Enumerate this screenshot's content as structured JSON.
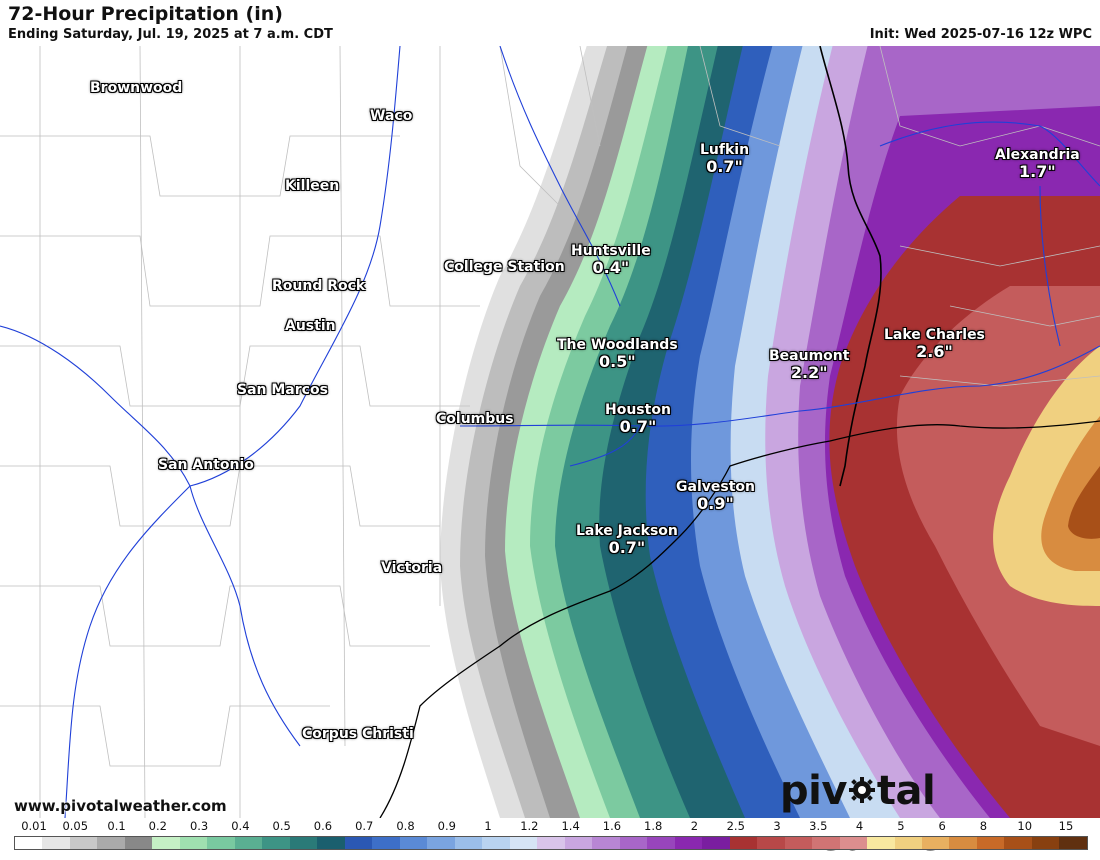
{
  "header": {
    "title": "72-Hour Precipitation (in)",
    "subtitle": "Ending Saturday, Jul. 19, 2025 at 7 a.m. CDT",
    "init": "Init: Wed 2025-07-16 12z WPC"
  },
  "cities": [
    {
      "name": "Brownwood",
      "value": ""
    },
    {
      "name": "Waco",
      "value": ""
    },
    {
      "name": "Killeen",
      "value": ""
    },
    {
      "name": "College Station",
      "value": ""
    },
    {
      "name": "Round Rock",
      "value": ""
    },
    {
      "name": "Austin",
      "value": ""
    },
    {
      "name": "San Marcos",
      "value": ""
    },
    {
      "name": "Columbus",
      "value": ""
    },
    {
      "name": "San Antonio",
      "value": ""
    },
    {
      "name": "Victoria",
      "value": ""
    },
    {
      "name": "Corpus Christi",
      "value": ""
    },
    {
      "name": "Lufkin",
      "value": "0.7\""
    },
    {
      "name": "Huntsville",
      "value": "0.4\""
    },
    {
      "name": "The Woodlands",
      "value": "0.5\""
    },
    {
      "name": "Houston",
      "value": "0.7\""
    },
    {
      "name": "Galveston",
      "value": "0.9\""
    },
    {
      "name": "Lake Jackson",
      "value": "0.7\""
    },
    {
      "name": "Beaumont",
      "value": "2.2\""
    },
    {
      "name": "Lake Charles",
      "value": "2.6\""
    },
    {
      "name": "Alexandria",
      "value": "1.7\""
    }
  ],
  "footer": {
    "website": "www.pivotalweather.com",
    "brand_left": "piv",
    "brand_right": "tal weather"
  },
  "legend": {
    "labels": [
      "0.01",
      "0.05",
      "0.1",
      "0.2",
      "0.3",
      "0.4",
      "0.5",
      "0.6",
      "0.7",
      "0.8",
      "0.9",
      "1",
      "1.2",
      "1.4",
      "1.6",
      "1.8",
      "2",
      "2.5",
      "3",
      "3.5",
      "4",
      "5",
      "6",
      "8",
      "10",
      "15"
    ],
    "colors": [
      "#ffffff",
      "#e6e6e6",
      "#c8c8c8",
      "#aaaaaa",
      "#888888",
      "#c5f0c5",
      "#9fe0b0",
      "#79c9a0",
      "#5aaf92",
      "#3d9485",
      "#2a7a78",
      "#1a5f6e",
      "#2b58b4",
      "#3d6fc8",
      "#5a8ad6",
      "#7aa4e0",
      "#9bbee9",
      "#b9d3f0",
      "#d6e4f5",
      "#d9c4ea",
      "#c9a6e0",
      "#b886d4",
      "#a866c8",
      "#9845bc",
      "#8a28b0",
      "#7a1ea0",
      "#a83232",
      "#b84848",
      "#c45c5c",
      "#d07474",
      "#dc8e8e",
      "#f8e8a0",
      "#f0d080",
      "#e8b060",
      "#d88c40",
      "#c86a28",
      "#a85018",
      "#884010",
      "#603010"
    ]
  }
}
